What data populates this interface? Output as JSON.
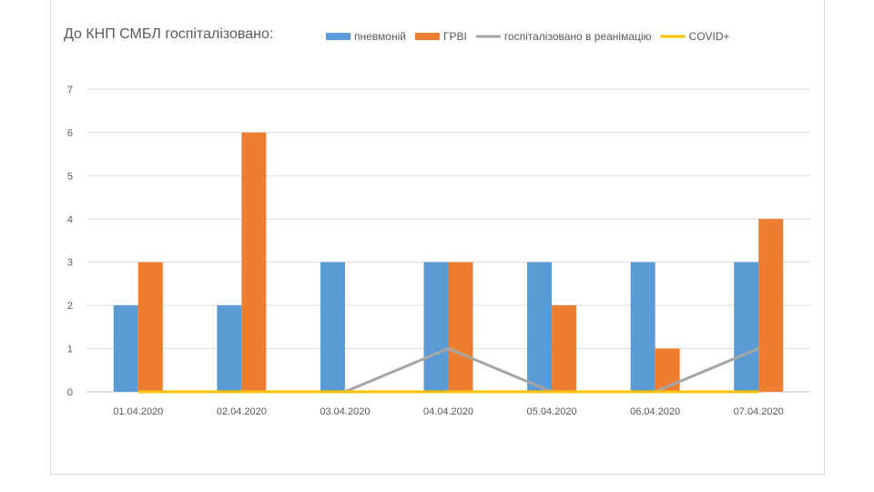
{
  "chart_data": {
    "type": "bar",
    "title": "До КНП СМБЛ госпіталізовано:",
    "categories": [
      "01.04.2020",
      "02.04.2020",
      "03.04.2020",
      "04.04.2020",
      "05.04.2020",
      "06.04.2020",
      "07.04.2020"
    ],
    "series": [
      {
        "name": "пневмоній",
        "type": "bar",
        "color": "#5b9bd5",
        "values": [
          2,
          2,
          3,
          3,
          3,
          3,
          3
        ]
      },
      {
        "name": "ГРВІ",
        "type": "bar",
        "color": "#ed7d31",
        "values": [
          3,
          6,
          0,
          3,
          2,
          1,
          4
        ]
      },
      {
        "name": "госпіталізовано в реанімацію",
        "type": "line",
        "color": "#a5a5a5",
        "values": [
          0,
          0,
          0,
          1,
          0,
          0,
          1
        ]
      },
      {
        "name": "COVID+",
        "type": "line",
        "color": "#ffc000",
        "values": [
          0,
          0,
          0,
          0,
          0,
          0,
          0
        ]
      }
    ],
    "ylim": [
      0,
      7
    ],
    "yticks": [
      0,
      1,
      2,
      3,
      4,
      5,
      6,
      7
    ],
    "xlabel": "",
    "ylabel": "",
    "grid": true,
    "legend_position": "top"
  }
}
